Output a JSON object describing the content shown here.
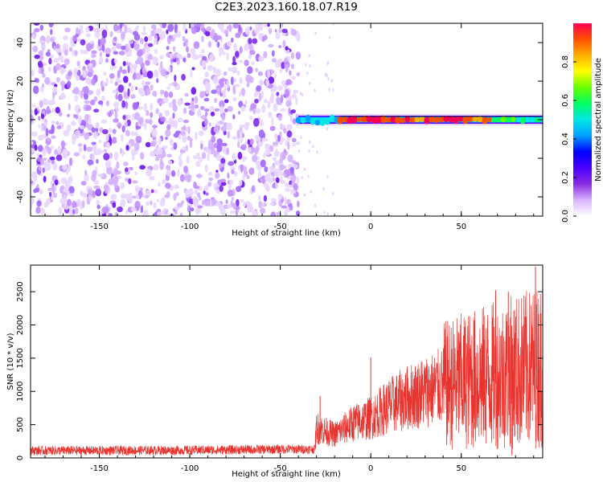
{
  "title": "C2E3.2023.160.18.07.R19",
  "colors": {
    "snr_line": "#e8332e",
    "colormap": [
      "#ffffff",
      "#d9b3ff",
      "#8a2be2",
      "#4b00ff",
      "#0000ff",
      "#00a0ff",
      "#00e5e5",
      "#00ff66",
      "#66ff00",
      "#ffff00",
      "#ffb000",
      "#ff5000",
      "#ff0055"
    ]
  },
  "chart_data": [
    {
      "type": "heatmap",
      "name": "spectrogram",
      "xlabel": "Height of straight line (km)",
      "ylabel": "Frequency (Hz)",
      "xlim": [
        -188,
        95
      ],
      "ylim": [
        -50,
        50
      ],
      "xticks": [
        -150,
        -100,
        -50,
        0,
        50
      ],
      "yticks": [
        -40,
        -20,
        0,
        20,
        40
      ],
      "colorbar": {
        "label": "Normalized spectral amplitude",
        "range": [
          0,
          1
        ],
        "ticks": [
          "0.0",
          "0.2",
          "0.4",
          "0.6",
          "0.8"
        ]
      },
      "regions": [
        {
          "x_range": [
            -188,
            -40
          ],
          "freq_range": [
            -50,
            50
          ],
          "amplitude": 0.1,
          "description": "noise"
        },
        {
          "x_range": [
            -40,
            -17
          ],
          "freq_center": 0,
          "amplitude": 0.5
        },
        {
          "x_range": [
            -17,
            68
          ],
          "freq_center": 0,
          "amplitude": 0.95
        },
        {
          "x_range": [
            68,
            95
          ],
          "freq_center": 0,
          "amplitude": 0.6
        }
      ]
    },
    {
      "type": "line",
      "name": "snr",
      "xlabel": "Height of straight line (km)",
      "ylabel": "SNR (10 * v/v)",
      "xlim": [
        -188,
        95
      ],
      "ylim": [
        0,
        2900
      ],
      "xticks": [
        -150,
        -100,
        -50,
        0,
        50
      ],
      "yticks": [
        0,
        500,
        1000,
        1500,
        2000,
        2500
      ],
      "envelope": {
        "x": [
          -188,
          -150,
          -100,
          -50,
          -31,
          -30,
          -20,
          -10,
          0,
          10,
          20,
          30,
          40,
          50,
          60,
          70,
          80,
          90,
          95
        ],
        "y": [
          110,
          110,
          115,
          130,
          130,
          450,
          350,
          520,
          600,
          780,
          900,
          1000,
          1080,
          1150,
          1200,
          1250,
          1300,
          1350,
          1400
        ]
      },
      "spikes": [
        {
          "x": 91,
          "y": 2880
        },
        {
          "x": 76,
          "y": 2500
        },
        {
          "x": 78,
          "y": 40
        },
        {
          "x": 69,
          "y": 2520
        },
        {
          "x": 0,
          "y": 1510
        },
        {
          "x": -28,
          "y": 930
        }
      ]
    }
  ]
}
